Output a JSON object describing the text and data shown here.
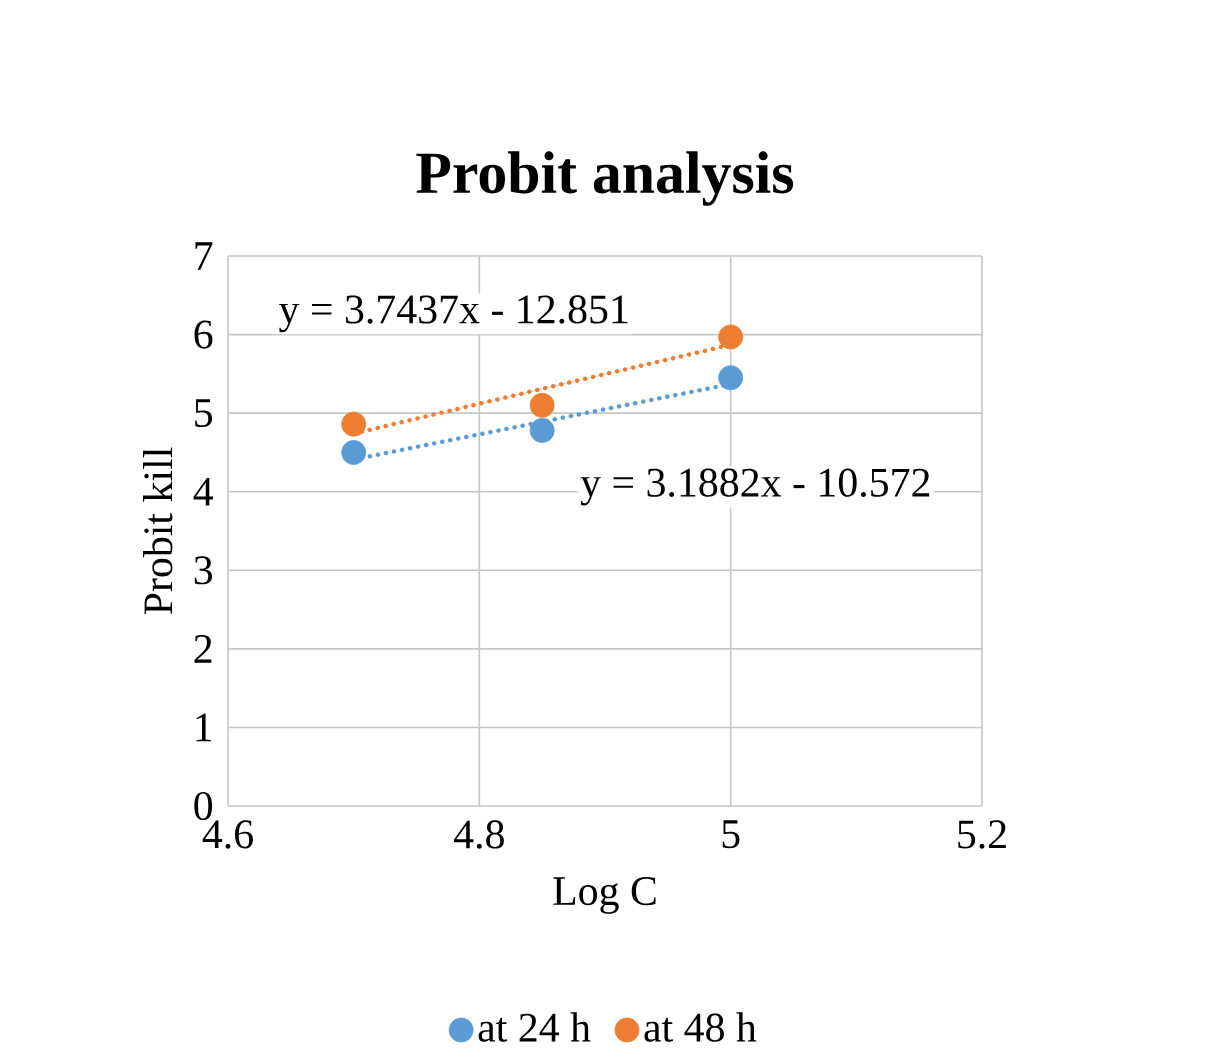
{
  "chart_data": {
    "type": "scatter",
    "title": "Probit analysis",
    "xlabel": "Log C",
    "ylabel": "Probit kill",
    "x": [
      4.7,
      4.85,
      5.0
    ],
    "series": [
      {
        "name": "at 24 h",
        "color": "#5b9bd5",
        "marker": "circle",
        "values": [
          4.5,
          4.78,
          5.45
        ]
      },
      {
        "name": "at 48 h",
        "color": "#ed7d31",
        "marker": "circle",
        "values": [
          4.86,
          5.1,
          5.97
        ]
      },
      {
        "type": "line",
        "line_style": "dotted",
        "marker": "none",
        "color": "#5b9bd5",
        "values": [
          4.41,
          4.89,
          5.37
        ]
      },
      {
        "type": "line",
        "line_style": "dotted",
        "marker": "none",
        "color": "#ed7d31",
        "values": [
          4.74,
          5.31,
          5.87
        ]
      }
    ],
    "annotations": [
      "y = 3.7437x - 12.851",
      "y = 3.1882x - 10.572"
    ],
    "xlim": [
      4.6,
      5.2
    ],
    "xticks": [
      4.6,
      4.8,
      5,
      5.2
    ],
    "ylim": [
      0,
      7
    ],
    "yticks": [
      0,
      1,
      2,
      3,
      4,
      5,
      6,
      7
    ],
    "grid": true,
    "legend": "bottom"
  }
}
